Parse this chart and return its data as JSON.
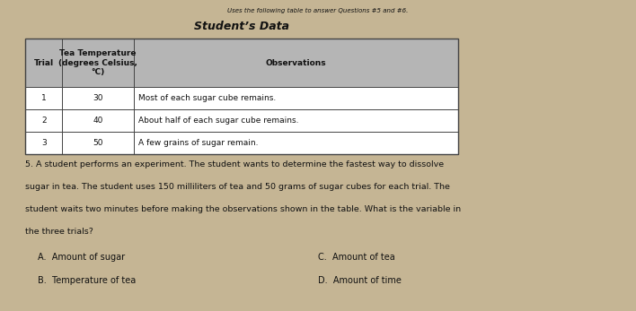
{
  "bg_color": "#c5b594",
  "page_intro": "Uses the following table to answer Questions #5 and #6.",
  "table_title": "Student’s Data",
  "col_headers": [
    "Trial",
    "Tea Temperature\n(degrees Celsius,\n°C)",
    "Observations"
  ],
  "rows": [
    [
      "1",
      "30",
      "Most of each sugar cube remains."
    ],
    [
      "2",
      "40",
      "About half of each sugar cube remains."
    ],
    [
      "3",
      "50",
      "A few grains of sugar remain."
    ]
  ],
  "question_text_parts": [
    "5. A student performs an experiment. The student wants to determine the fastest way to dissolve",
    "sugar in tea. The student uses 150 milliliters of tea and 50 grams of sugar cubes for each trial. The",
    "student waits two minutes before making the observations shown in the table. What is the variable in",
    "the three trials?"
  ],
  "answer_choices_left": [
    "A.  Amount of sugar",
    "B.  Temperature of tea"
  ],
  "answer_choices_right": [
    "C.  Amount of tea",
    "D.  Amount of time"
  ],
  "table_header_bg": "#b5b5b5",
  "table_border_color": "#444444",
  "text_color": "#111111",
  "title_fontsize": 9,
  "body_fontsize": 6.5,
  "header_fontsize": 6.5,
  "question_fontsize": 6.8,
  "answer_fontsize": 7.0
}
